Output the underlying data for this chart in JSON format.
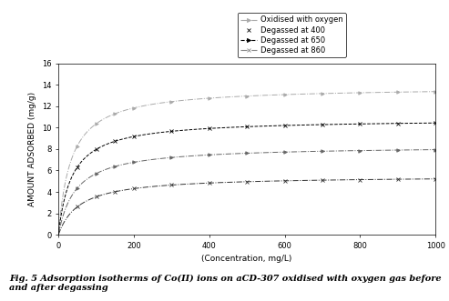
{
  "xlabel": "(Concentration, mg/L)",
  "ylabel": "AMOUNT ADSORBED (mg/g)",
  "xlim": [
    0,
    1000
  ],
  "ylim": [
    0,
    16
  ],
  "yticks": [
    0,
    2,
    4,
    6,
    8,
    10,
    12,
    14,
    16
  ],
  "xticks": [
    0,
    200,
    400,
    600,
    800,
    1000
  ],
  "series": [
    {
      "label": "Oxidised with oxygen",
      "qmax": 13.8,
      "b": 0.03,
      "color": "#aaaaaa",
      "linestyle": "-.",
      "marker": ">"
    },
    {
      "label": "Degassed at 400",
      "qmax": 10.8,
      "b": 0.028,
      "color": "#000000",
      "linestyle": "--",
      "marker": "x"
    },
    {
      "label": "Degassed at 650",
      "qmax": 8.3,
      "b": 0.022,
      "color": "#666666",
      "linestyle": "-.",
      "marker": ">"
    },
    {
      "label": "Degassed at 860",
      "qmax": 5.5,
      "b": 0.018,
      "color": "#333333",
      "linestyle": "-.",
      "marker": "x"
    }
  ],
  "marker_x": [
    50,
    100,
    150,
    200,
    300,
    400,
    500,
    600,
    700,
    800,
    900,
    1000
  ],
  "caption": "Fig. 5 Adsorption isotherms of Co(II) ions on aCD-307 oxidised with oxygen gas before\nand after degassing",
  "background_color": "#ffffff",
  "axis_label_fontsize": 6.5,
  "tick_fontsize": 6,
  "legend_fontsize": 6,
  "caption_fontsize": 7
}
